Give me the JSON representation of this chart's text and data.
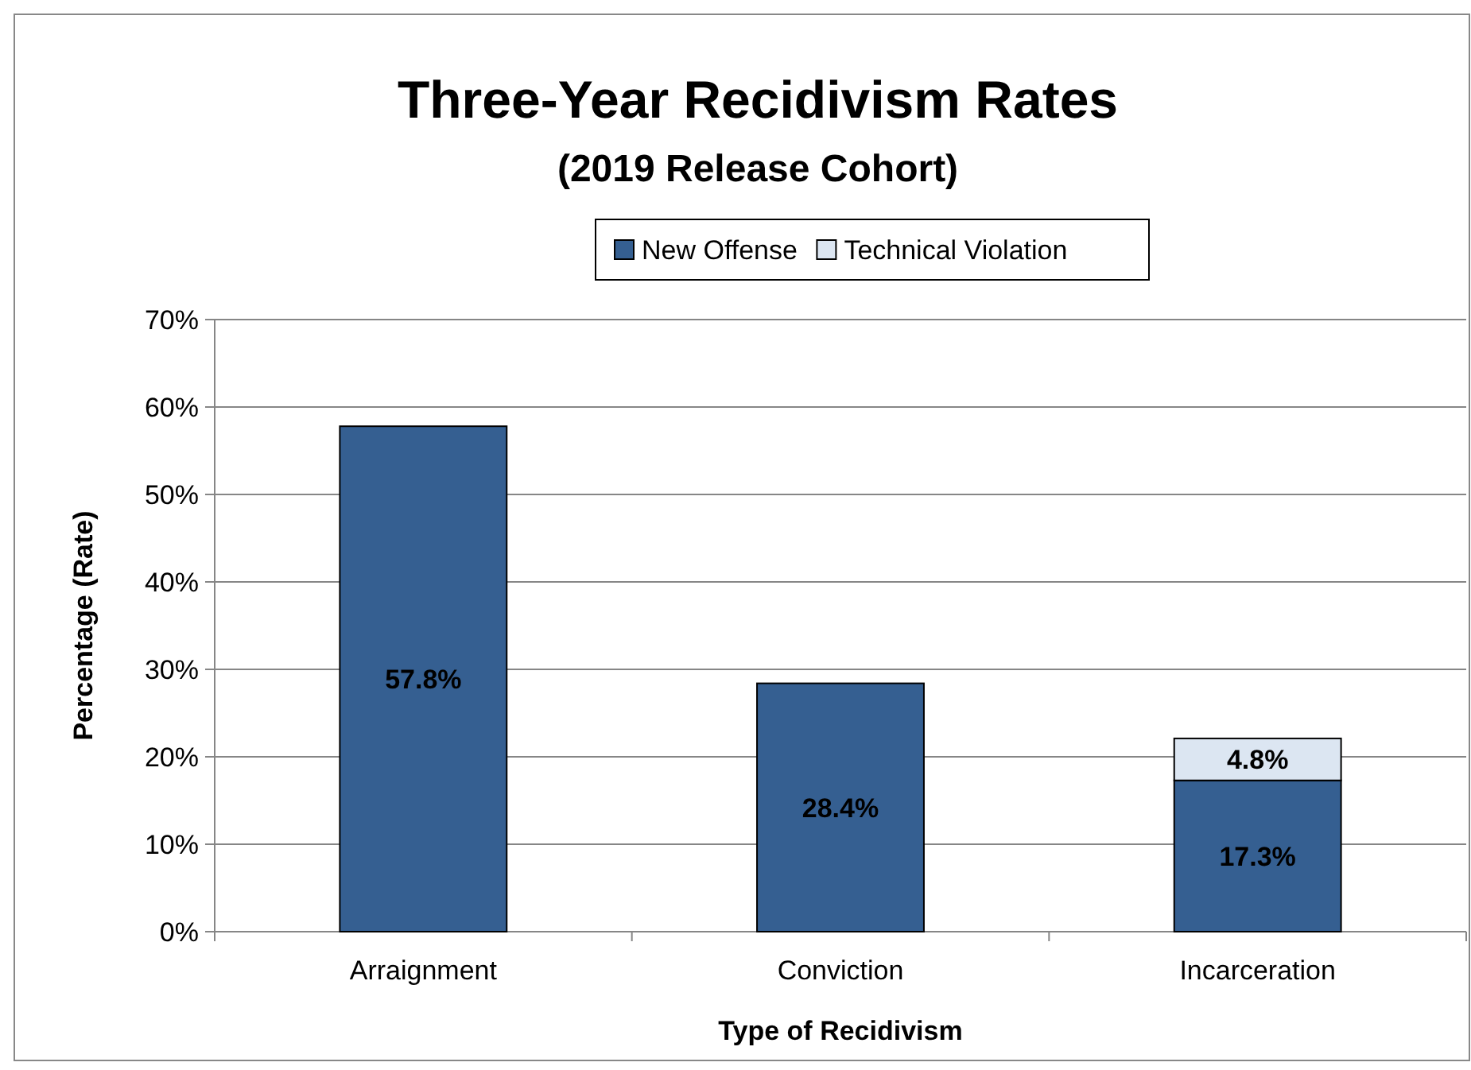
{
  "chart_data": {
    "type": "bar",
    "title": "Three-Year Recidivism Rates",
    "subtitle": "(2019 Release Cohort)",
    "xlabel": "Type of Recidivism",
    "ylabel": "Percentage (Rate)",
    "categories": [
      "Arraignment",
      "Conviction",
      "Incarceration"
    ],
    "stacked": true,
    "series": [
      {
        "name": "New Offense",
        "color": "#355f91",
        "values": [
          57.8,
          28.4,
          17.3
        ],
        "value_labels": [
          "57.8%",
          "28.4%",
          "17.3%"
        ]
      },
      {
        "name": "Technical Violation",
        "color": "#dce6f2",
        "values": [
          null,
          null,
          4.8
        ],
        "value_labels": [
          null,
          null,
          "4.8%"
        ]
      }
    ],
    "ylim": [
      0,
      70
    ],
    "yticks": [
      {
        "value": 0,
        "label": "0%"
      },
      {
        "value": 10,
        "label": "10%"
      },
      {
        "value": 20,
        "label": "20%"
      },
      {
        "value": 30,
        "label": "30%"
      },
      {
        "value": 40,
        "label": "40%"
      },
      {
        "value": 50,
        "label": "50%"
      },
      {
        "value": 60,
        "label": "60%"
      },
      {
        "value": 70,
        "label": "70%"
      }
    ],
    "grid": "y",
    "legend": "top"
  }
}
